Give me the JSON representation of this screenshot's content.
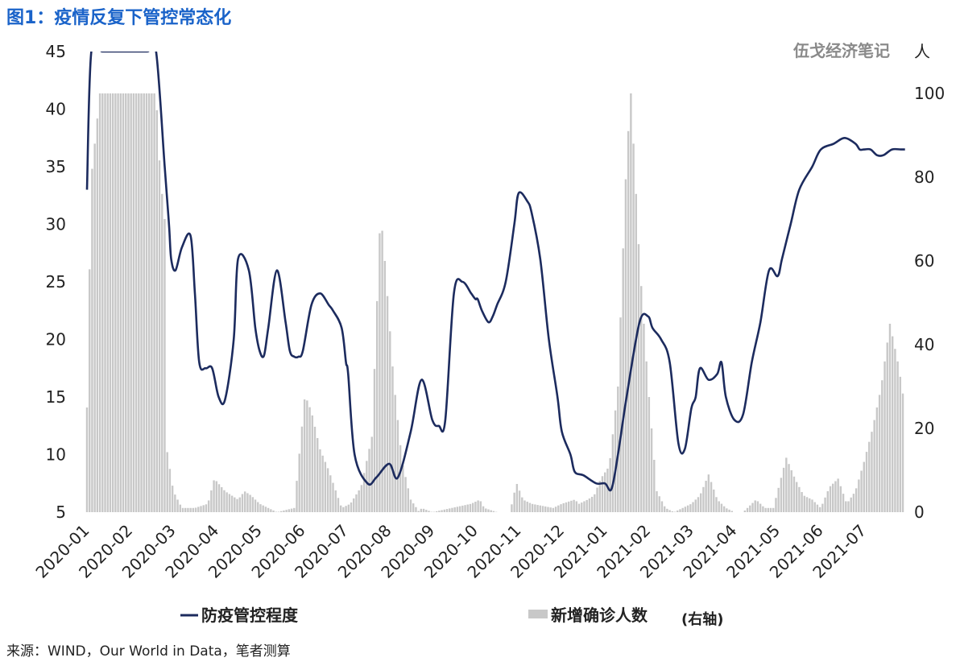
{
  "figure": {
    "title": "图1：疫情反复下管控常态化",
    "watermark": "伍戈经济笔记",
    "right_axis_unit": "人",
    "source": "来源：WIND，Our World in Data，笔者测算"
  },
  "colors": {
    "line": "#1c2b5e",
    "bars": "#c8c8c8",
    "title": "#1a63c9"
  },
  "chart_data": {
    "type": "line",
    "x_ticks": [
      "2020-01",
      "2020-02",
      "2020-03",
      "2020-04",
      "2020-05",
      "2020-06",
      "2020-07",
      "2020-08",
      "2020-09",
      "2020-10",
      "2020-11",
      "2020-12",
      "2021-01",
      "2021-02",
      "2021-03",
      "2021-04",
      "2021-05",
      "2021-06",
      "2021-07"
    ],
    "y_left": {
      "ticks": [
        5,
        10,
        15,
        20,
        25,
        30,
        35,
        40,
        45
      ],
      "range": [
        5,
        45
      ]
    },
    "y_right": {
      "ticks": [
        0,
        20,
        40,
        60,
        80,
        100
      ],
      "range": [
        0,
        100
      ]
    },
    "legend": {
      "line": "防疫管控程度",
      "bars": "新增确诊人数",
      "bars_suffix": "(右轴)"
    },
    "series": [
      {
        "name": "防疫管控程度",
        "axis": "left",
        "x": [
          0.0,
          0.1,
          0.35,
          0.6,
          1.0,
          1.4,
          1.6,
          1.8,
          1.9,
          1.95,
          2.05,
          2.2,
          2.4,
          2.5,
          2.6,
          2.75,
          2.9,
          3.05,
          3.2,
          3.4,
          3.5,
          3.75,
          3.9,
          4.0,
          4.1,
          4.2,
          4.4,
          4.6,
          4.7,
          4.8,
          4.9,
          5.0,
          5.2,
          5.4,
          5.6,
          5.7,
          5.9,
          6.0,
          6.05,
          6.2,
          6.5,
          6.7,
          7.0,
          7.2,
          7.5,
          7.75,
          8.0,
          8.15,
          8.3,
          8.5,
          8.7,
          8.9,
          9.0,
          9.05,
          9.15,
          9.3,
          9.4,
          9.5,
          9.7,
          9.9,
          10.0,
          10.2,
          10.3,
          10.5,
          10.7,
          10.9,
          11.0,
          11.2,
          11.3,
          11.5,
          11.8,
          12.0,
          12.15,
          12.3,
          12.5,
          12.8,
          13.0,
          13.1,
          13.3,
          13.5,
          13.7,
          13.85,
          14.0,
          14.1,
          14.2,
          14.4,
          14.6,
          14.7,
          14.8,
          15.0,
          15.2,
          15.4,
          15.6,
          15.8,
          16.0,
          16.1,
          16.3,
          16.5,
          16.8,
          17.0,
          17.3,
          17.55,
          17.8,
          17.9,
          18.0,
          18.15,
          18.3,
          18.45,
          18.65,
          18.85,
          18.95
        ],
        "values": [
          33,
          45,
          45,
          45,
          45,
          45,
          45,
          35,
          30,
          27,
          26,
          28,
          29,
          24,
          18,
          17.5,
          17.5,
          15,
          14.8,
          20,
          27,
          26,
          21,
          19,
          18.6,
          21,
          26,
          21.5,
          19,
          18.5,
          18.5,
          19,
          23,
          24,
          23,
          22.5,
          21,
          18,
          17,
          10,
          7.5,
          8,
          9.2,
          8,
          12,
          16.5,
          13,
          12.5,
          13,
          24,
          25,
          24,
          23.5,
          23.5,
          22.5,
          21.5,
          22,
          23,
          25,
          30,
          32.7,
          32,
          31,
          27,
          20,
          15,
          12,
          10,
          8.5,
          8.2,
          7.5,
          7.5,
          7,
          10,
          15,
          21.5,
          22,
          21,
          20,
          18,
          11,
          10.5,
          14,
          15,
          17.5,
          16.5,
          17,
          18,
          15,
          13,
          13.5,
          18,
          21.5,
          26,
          25.5,
          27,
          30,
          33,
          35,
          36.5,
          37,
          37.5,
          37,
          36.5,
          36.5,
          36.5,
          36,
          36,
          36.5,
          36.5,
          36.5
        ]
      },
      {
        "name": "新增确诊人数",
        "axis": "right",
        "x": [
          0.0,
          0.1,
          0.3,
          0.6,
          1.0,
          1.4,
          1.6,
          1.7,
          1.8,
          1.85,
          2.0,
          2.2,
          2.5,
          2.8,
          2.95,
          3.2,
          3.5,
          3.65,
          3.8,
          4.0,
          4.4,
          4.8,
          5.05,
          5.2,
          5.4,
          5.6,
          5.8,
          5.9,
          6.1,
          6.35,
          6.6,
          6.8,
          6.9,
          7.1,
          7.3,
          7.5,
          7.7,
          7.75,
          8.0,
          8.9,
          9.1,
          9.2,
          9.5,
          9.8,
          9.95,
          10.1,
          10.3,
          10.8,
          11.0,
          11.3,
          11.4,
          11.6,
          11.75,
          11.9,
          12.1,
          12.3,
          12.5,
          12.6,
          12.8,
          13.0,
          13.2,
          13.4,
          13.6,
          13.8,
          14.0,
          14.2,
          14.4,
          14.6,
          14.8,
          15.0,
          15.2,
          15.4,
          15.5,
          15.7,
          15.9,
          16.0,
          16.2,
          16.4,
          16.6,
          16.8,
          17.0,
          17.2,
          17.4,
          17.6,
          17.8,
          18.0,
          18.2,
          18.4,
          18.6,
          18.8,
          18.95
        ],
        "values": [
          25,
          80,
          100,
          100,
          100,
          100,
          100,
          80,
          70,
          15,
          5,
          1,
          1,
          2,
          8,
          5,
          3,
          5,
          4,
          2,
          0,
          1,
          28,
          24,
          15,
          10,
          4,
          1,
          2,
          6,
          18,
          72,
          60,
          32,
          12,
          3,
          0,
          1,
          0,
          2,
          3,
          1,
          0,
          0,
          7,
          3,
          2,
          1,
          2,
          3,
          2,
          3,
          4,
          8,
          11,
          30,
          85,
          100,
          60,
          30,
          5,
          1,
          0,
          1,
          2,
          4,
          9,
          3,
          1,
          0,
          0,
          2,
          3,
          1,
          1,
          5,
          13,
          8,
          4,
          3,
          1,
          6,
          8,
          2,
          5,
          12,
          20,
          30,
          45,
          35,
          25
        ]
      }
    ]
  }
}
